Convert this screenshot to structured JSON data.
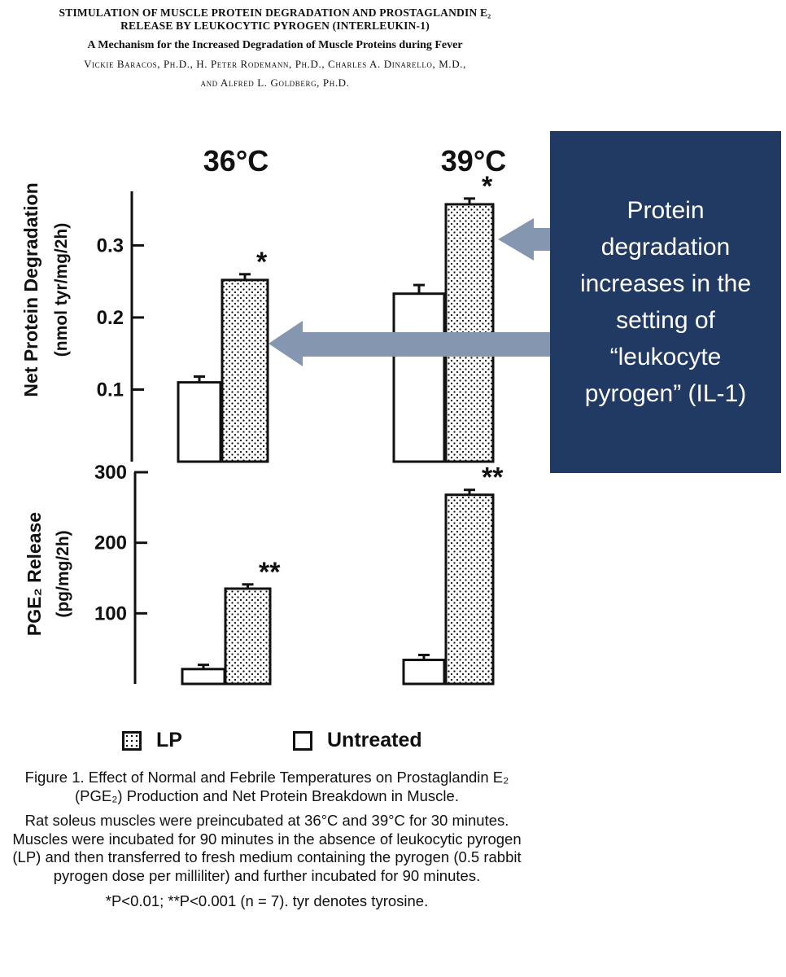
{
  "paper": {
    "title_line1": "STIMULATION OF MUSCLE PROTEIN DEGRADATION AND PROSTAGLANDIN E₂",
    "title_line2": "RELEASE BY LEUKOCYTIC PYROGEN (INTERLEUKIN-1)",
    "subtitle": "A Mechanism for the Increased Degradation of Muscle Proteins during Fever",
    "authors_line1": "Vickie Baracos, Ph.D., H. Peter Rodemann, Ph.D., Charles A. Dinarello, M.D.,",
    "authors_line2": "and Alfred L. Goldberg, Ph.D."
  },
  "callout": {
    "text": "Protein degradation increases in the setting of “leukocyte pyrogen” (IL-1)",
    "color": "#213a64",
    "arrow_color": "#8496b0"
  },
  "legend": {
    "lp": "LP",
    "untreated": "Untreated"
  },
  "caption": {
    "title": "Figure 1. Effect of Normal and Febrile Temperatures on Prostaglandin E₂ (PGE₂) Production and Net Protein Breakdown in Muscle.",
    "body": "Rat soleus muscles were preincubated at 36°C and 39°C for 30 minutes. Muscles were incubated for 90 minutes in the absence of leukocytic pyrogen (LP) and then transferred to fresh medium containing the pyrogen (0.5 rabbit pyrogen dose per milliliter) and further incubated for 90 minutes.",
    "notes": "*P<0.01; **P<0.001 (n = 7). tyr denotes tyrosine."
  },
  "chart_data": [
    {
      "type": "bar",
      "panel": "protein",
      "group_labels": [
        "36°C",
        "39°C"
      ],
      "series": [
        {
          "name": "Untreated",
          "values": [
            0.11,
            0.233
          ],
          "errors": [
            0.008,
            0.012
          ]
        },
        {
          "name": "LP",
          "values": [
            0.252,
            0.357
          ],
          "errors": [
            0.008,
            0.008
          ]
        }
      ],
      "significance": [
        [
          "",
          ""
        ],
        [
          "*",
          "*"
        ]
      ],
      "ylabel_line1": "Net Protein Degradation",
      "ylabel_line2": "(nmol tyr/mg/2h)",
      "yticks": [
        "0.1",
        "0.2",
        "0.3"
      ],
      "ylim": [
        0.0,
        0.375
      ]
    },
    {
      "type": "bar",
      "panel": "pge2",
      "group_labels": [
        "36°C",
        "39°C"
      ],
      "series": [
        {
          "name": "Untreated",
          "values": [
            21,
            34
          ],
          "errors": [
            6,
            7
          ]
        },
        {
          "name": "LP",
          "values": [
            135,
            268
          ],
          "errors": [
            6,
            7
          ]
        }
      ],
      "significance": [
        [
          "",
          ""
        ],
        [
          "**",
          "**"
        ]
      ],
      "ylabel_line1": "PGE₂ Release",
      "ylabel_line2": "(pg/mg/2h)",
      "yticks": [
        "100",
        "200",
        "300"
      ],
      "ylim": [
        0,
        300
      ]
    }
  ]
}
